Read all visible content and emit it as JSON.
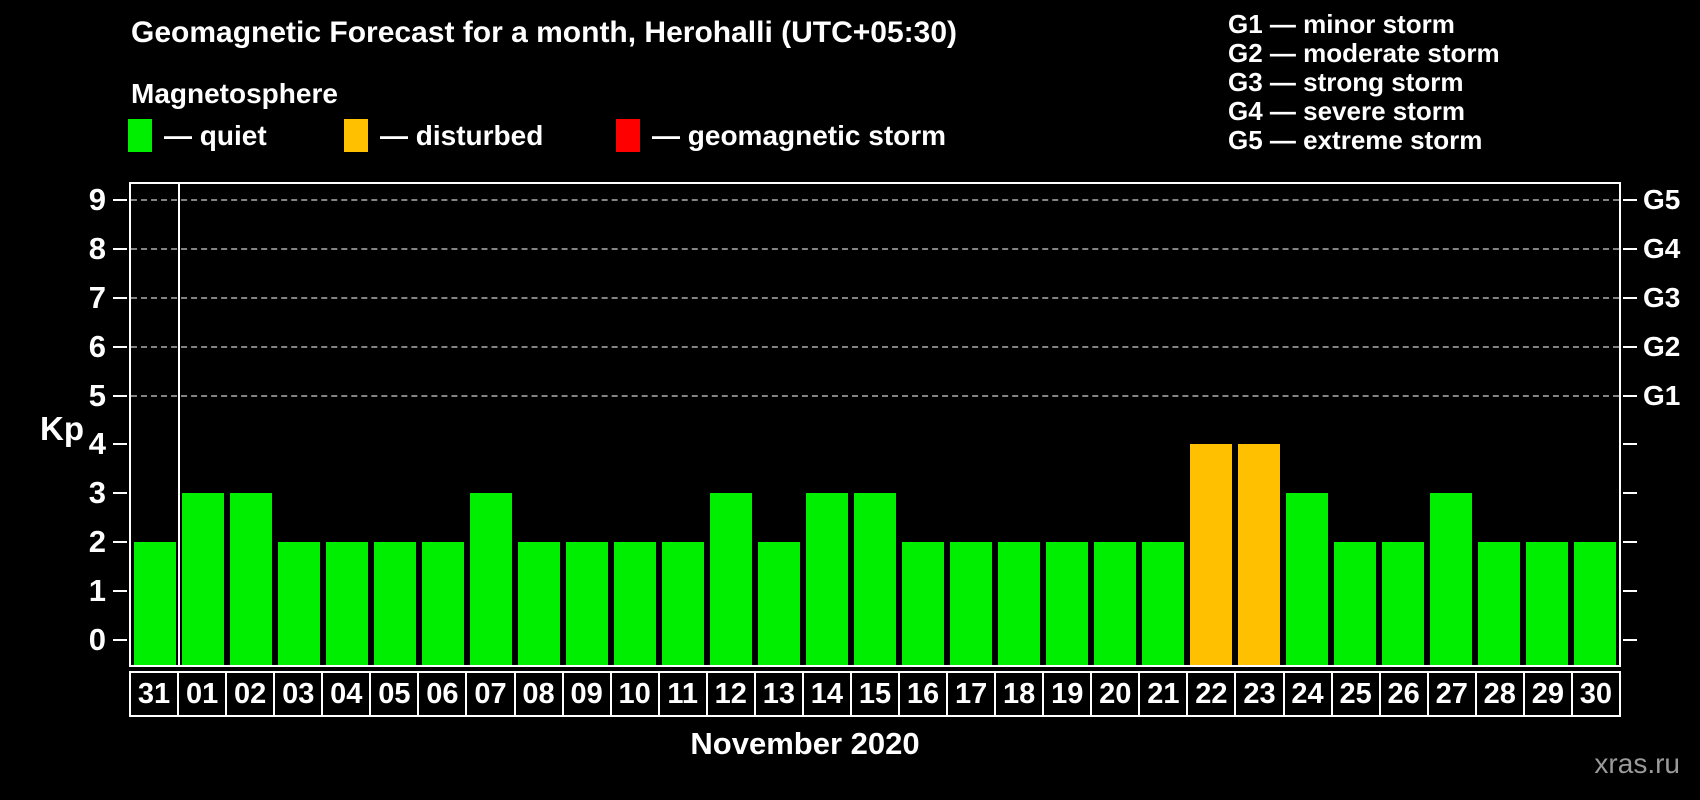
{
  "header": {
    "title": "Geomagnetic Forecast for a month, Herohalli (UTC+05:30)",
    "subtitle": "Magnetosphere"
  },
  "legend": {
    "items": [
      {
        "key": "quiet",
        "label": "— quiet",
        "color": "#00ee00",
        "x": 128
      },
      {
        "key": "disturbed",
        "label": "— disturbed",
        "color": "#ffc000",
        "x": 344
      },
      {
        "key": "storm",
        "label": "— geomagnetic storm",
        "color": "#ff0000",
        "x": 616
      }
    ]
  },
  "g_legend": [
    {
      "text": "G1 — minor storm"
    },
    {
      "text": "G2 — moderate storm"
    },
    {
      "text": "G3 — strong storm"
    },
    {
      "text": "G4 — severe storm"
    },
    {
      "text": "G5 — extreme storm"
    }
  ],
  "watermark": "xras.ru",
  "chart_data": {
    "type": "bar",
    "title": "Geomagnetic Forecast for a month, Herohalli (UTC+05:30)",
    "xlabel": "November 2020",
    "ylabel": "Kp",
    "ylim": [
      0,
      9.4
    ],
    "y_ticks": [
      0,
      1,
      2,
      3,
      4,
      5,
      6,
      7,
      8,
      9
    ],
    "gridlines_kp": [
      5,
      6,
      7,
      8,
      9
    ],
    "right_axis_labels": [
      {
        "kp": 5,
        "label": "G1"
      },
      {
        "kp": 6,
        "label": "G2"
      },
      {
        "kp": 7,
        "label": "G3"
      },
      {
        "kp": 8,
        "label": "G4"
      },
      {
        "kp": 9,
        "label": "G5"
      }
    ],
    "categories": [
      "31",
      "01",
      "02",
      "03",
      "04",
      "05",
      "06",
      "07",
      "08",
      "09",
      "10",
      "11",
      "12",
      "13",
      "14",
      "15",
      "16",
      "17",
      "18",
      "19",
      "20",
      "21",
      "22",
      "23",
      "24",
      "25",
      "26",
      "27",
      "28",
      "29",
      "30"
    ],
    "values": [
      2,
      3,
      3,
      2,
      2,
      2,
      2,
      3,
      2,
      2,
      2,
      2,
      3,
      2,
      3,
      3,
      2,
      2,
      2,
      2,
      2,
      2,
      4,
      4,
      3,
      2,
      2,
      3,
      2,
      2,
      2
    ],
    "statuses": [
      "quiet",
      "quiet",
      "quiet",
      "quiet",
      "quiet",
      "quiet",
      "quiet",
      "quiet",
      "quiet",
      "quiet",
      "quiet",
      "quiet",
      "quiet",
      "quiet",
      "quiet",
      "quiet",
      "quiet",
      "quiet",
      "quiet",
      "quiet",
      "quiet",
      "quiet",
      "disturbed",
      "disturbed",
      "quiet",
      "quiet",
      "quiet",
      "quiet",
      "quiet",
      "quiet",
      "quiet"
    ],
    "status_colors": {
      "quiet": "#00ee00",
      "disturbed": "#ffc000",
      "storm": "#ff0000"
    },
    "month_boundary_after_index": 0,
    "legend_position": "top",
    "grid": "dashed horizontal at G levels only"
  }
}
